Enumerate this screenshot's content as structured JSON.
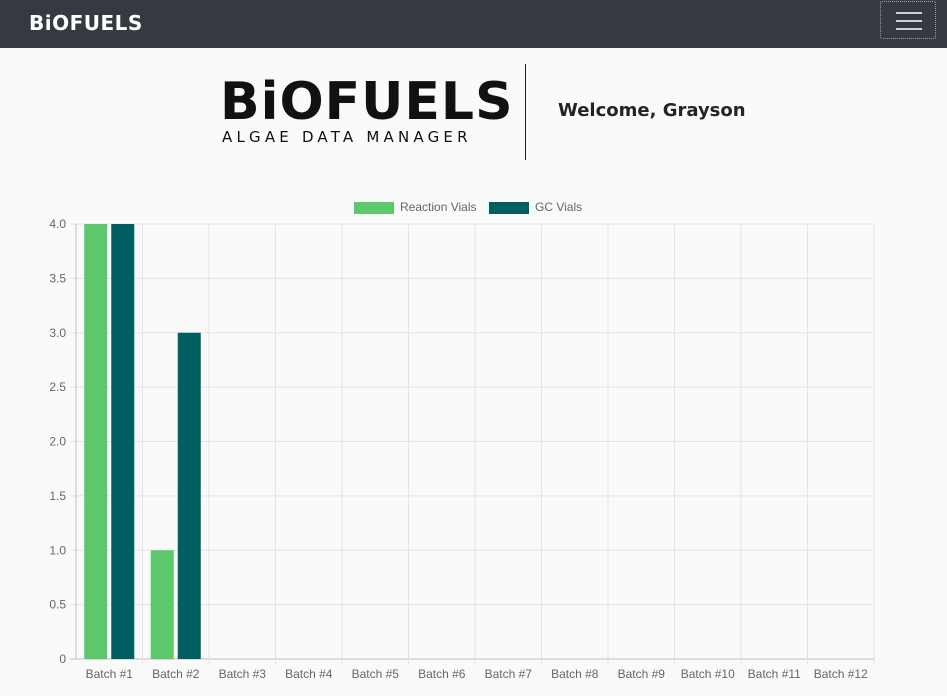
{
  "navbar": {
    "brand": "BiOFUELS"
  },
  "header": {
    "logo_title": "BiOFUELS",
    "logo_subtitle": "ALGAE DATA MANAGER",
    "welcome": "Welcome, Grayson"
  },
  "icons": {
    "menu_toggle": "hamburger-menu-icon"
  },
  "chart_data": {
    "type": "bar",
    "categories": [
      "Batch #1",
      "Batch #2",
      "Batch #3",
      "Batch #4",
      "Batch #5",
      "Batch #6",
      "Batch #7",
      "Batch #8",
      "Batch #9",
      "Batch #10",
      "Batch #11",
      "Batch #12"
    ],
    "series": [
      {
        "name": "Reaction Vials",
        "color": "#5cc86b",
        "values": [
          4,
          1,
          0,
          0,
          0,
          0,
          0,
          0,
          0,
          0,
          0,
          0
        ]
      },
      {
        "name": "GC Vials",
        "color": "#005f60",
        "values": [
          4,
          3,
          0,
          0,
          0,
          0,
          0,
          0,
          0,
          0,
          0,
          0
        ]
      }
    ],
    "ylim": [
      0,
      4
    ],
    "yticks": [
      "0",
      "0.5",
      "1.0",
      "1.5",
      "2.0",
      "2.5",
      "3.0",
      "3.5",
      "4.0"
    ],
    "grid": true,
    "legend_position": "top-center"
  }
}
